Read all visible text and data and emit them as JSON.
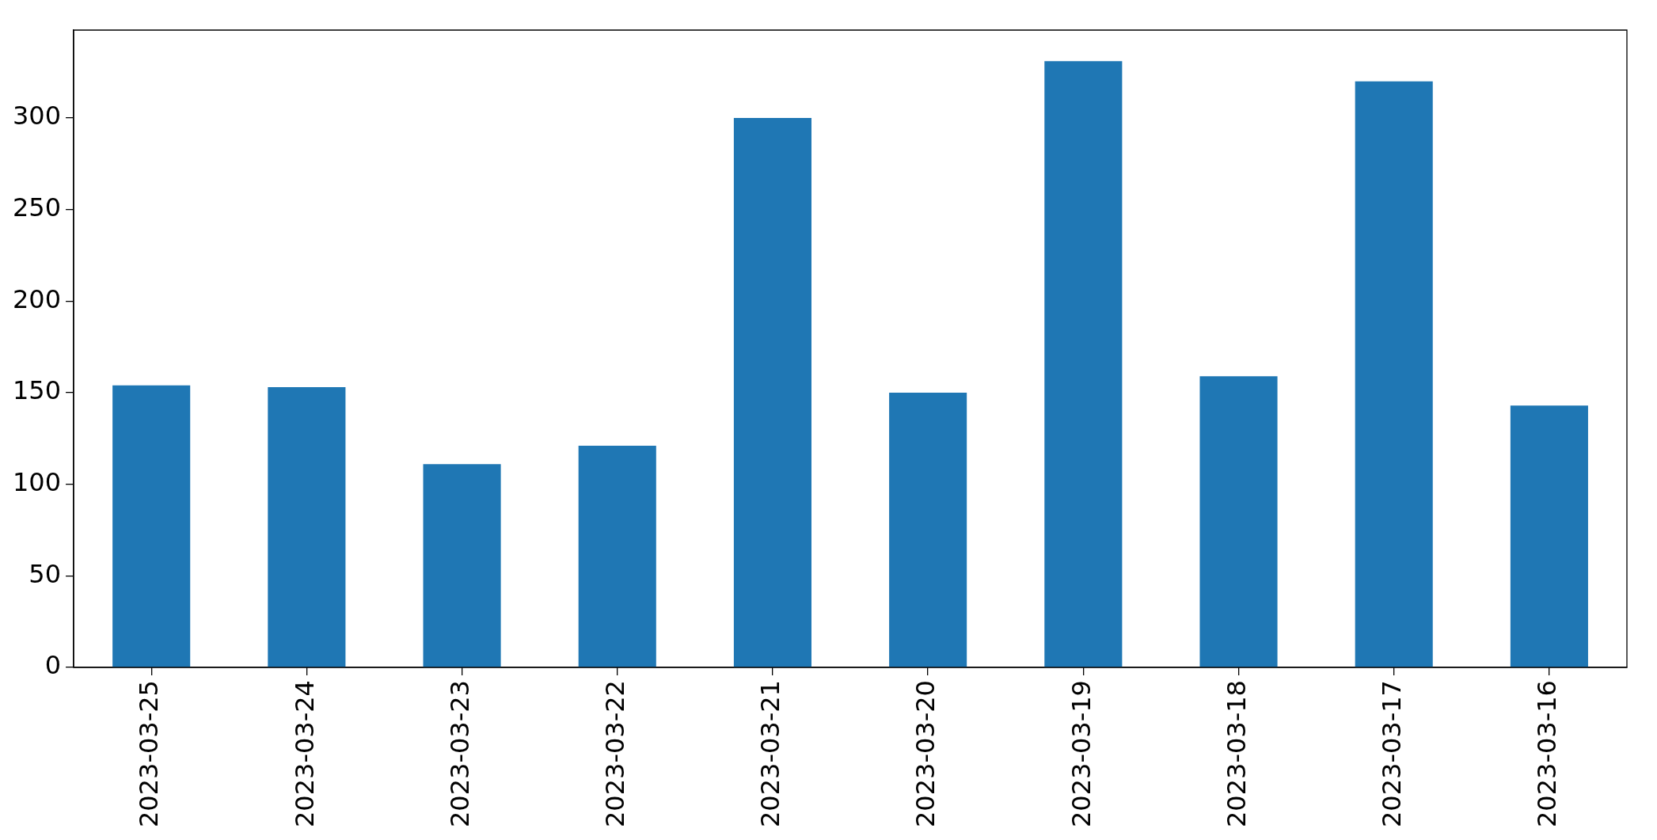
{
  "chart_data": {
    "type": "bar",
    "categories": [
      "2023-03-25",
      "2023-03-24",
      "2023-03-23",
      "2023-03-22",
      "2023-03-21",
      "2023-03-20",
      "2023-03-19",
      "2023-03-18",
      "2023-03-17",
      "2023-03-16"
    ],
    "values": [
      154,
      153,
      111,
      121,
      300,
      150,
      331,
      159,
      320,
      143
    ],
    "color": "#1f77b4",
    "ylim": [
      0,
      348
    ],
    "yticks": [
      0,
      50,
      100,
      150,
      200,
      250,
      300
    ],
    "grid": false,
    "legend": false
  }
}
